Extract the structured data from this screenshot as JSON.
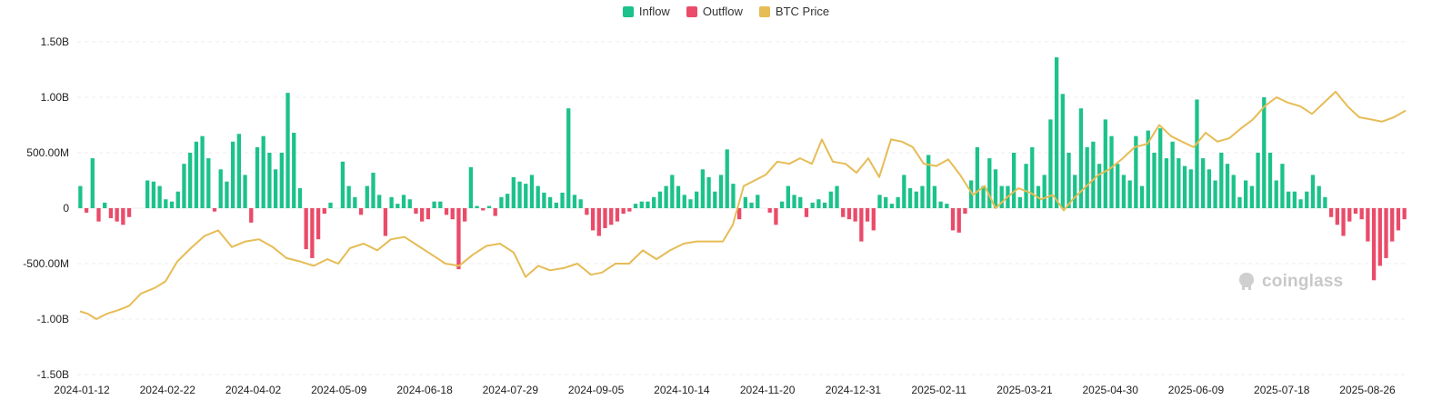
{
  "legend": [
    {
      "label": "Inflow",
      "color": "#1cc28b"
    },
    {
      "label": "Outflow",
      "color": "#ea4b69"
    },
    {
      "label": "BTC Price",
      "color": "#e6bc55"
    }
  ],
  "watermark": "coinglass",
  "chart_data": {
    "type": "bar",
    "y_ticks": [
      "1.50B",
      "1.00B",
      "500.00M",
      "0",
      "-500.00M",
      "-1.00B",
      "-1.50B"
    ],
    "ylim": [
      -1.5,
      1.5
    ],
    "y_unit": "B",
    "x_ticks": [
      "2024-01-12",
      "2024-02-22",
      "2024-04-02",
      "2024-05-09",
      "2024-06-18",
      "2024-07-29",
      "2024-09-05",
      "2024-10-14",
      "2024-11-20",
      "2024-12-31",
      "2025-02-11",
      "2025-03-21",
      "2025-04-30",
      "2025-06-09",
      "2025-07-18",
      "2025-08-26"
    ],
    "grid": "horizontal",
    "legend_position": "top-center",
    "series": [
      {
        "name": "Inflow",
        "color": "#1cc28b"
      },
      {
        "name": "Outflow",
        "color": "#ea4b69"
      },
      {
        "name": "BTC Price",
        "color": "#e6bc55"
      }
    ],
    "net_flow_values": [
      0.2,
      -0.04,
      0.45,
      -0.12,
      0.05,
      -0.09,
      -0.12,
      -0.15,
      -0.08,
      0,
      0,
      0.25,
      0.24,
      0.2,
      0.08,
      0.06,
      0.15,
      0.4,
      0.5,
      0.6,
      0.65,
      0.45,
      -0.03,
      0.35,
      0.24,
      0.6,
      0.67,
      0.3,
      -0.13,
      0.55,
      0.65,
      0.5,
      0.35,
      0.5,
      1.04,
      0.68,
      0.18,
      -0.37,
      -0.45,
      -0.28,
      -0.05,
      0.05,
      0.0,
      0.42,
      0.2,
      0.1,
      -0.06,
      0.2,
      0.32,
      0.12,
      -0.25,
      0.1,
      0.04,
      0.12,
      0.08,
      -0.05,
      -0.12,
      -0.1,
      0.06,
      0.06,
      -0.06,
      -0.1,
      -0.55,
      -0.12,
      0.37,
      0.02,
      -0.02,
      0.02,
      -0.07,
      0.1,
      0.13,
      0.28,
      0.24,
      0.22,
      0.3,
      0.2,
      0.14,
      0.1,
      0.05,
      0.14,
      0.9,
      0.12,
      0.08,
      -0.06,
      -0.2,
      -0.25,
      -0.18,
      -0.15,
      -0.12,
      -0.05,
      -0.03,
      0.04,
      0.06,
      0.06,
      0.1,
      0.15,
      0.2,
      0.3,
      0.2,
      0.12,
      0.08,
      0.15,
      0.35,
      0.28,
      0.15,
      0.3,
      0.53,
      0.22,
      -0.1,
      0.1,
      0.05,
      0.12,
      0.0,
      -0.04,
      -0.15,
      0.06,
      0.2,
      0.12,
      0.1,
      -0.08,
      0.05,
      0.08,
      0.05,
      0.15,
      0.2,
      -0.08,
      -0.1,
      -0.12,
      -0.3,
      -0.12,
      -0.2,
      0.12,
      0.1,
      0.04,
      0.1,
      0.3,
      0.18,
      0.15,
      0.2,
      0.48,
      0.2,
      0.06,
      0.04,
      -0.2,
      -0.22,
      -0.05,
      0.25,
      0.55,
      0.2,
      0.45,
      0.35,
      0.2,
      0.2,
      0.5,
      0.1,
      0.4,
      0.55,
      0.2,
      0.3,
      0.8,
      1.36,
      1.03,
      0.5,
      0.3,
      0.9,
      0.55,
      0.6,
      0.4,
      0.8,
      0.65,
      0.4,
      0.3,
      0.25,
      0.65,
      0.2,
      0.7,
      0.5,
      0.72,
      0.45,
      0.6,
      0.45,
      0.38,
      0.35,
      0.98,
      0.45,
      0.35,
      0.25,
      0.5,
      0.4,
      0.3,
      0.1,
      0.25,
      0.2,
      0.5,
      1.0,
      0.5,
      0.25,
      0.4,
      0.15,
      0.15,
      0.08,
      0.15,
      0.3,
      0.2,
      0.1,
      -0.08,
      -0.15,
      -0.25,
      -0.12,
      -0.05,
      -0.1,
      -0.3,
      -0.65,
      -0.52,
      -0.45,
      -0.3,
      -0.2,
      -0.1
    ],
    "inflow_values_note": "",
    "btc_price_line": "shown"
  }
}
